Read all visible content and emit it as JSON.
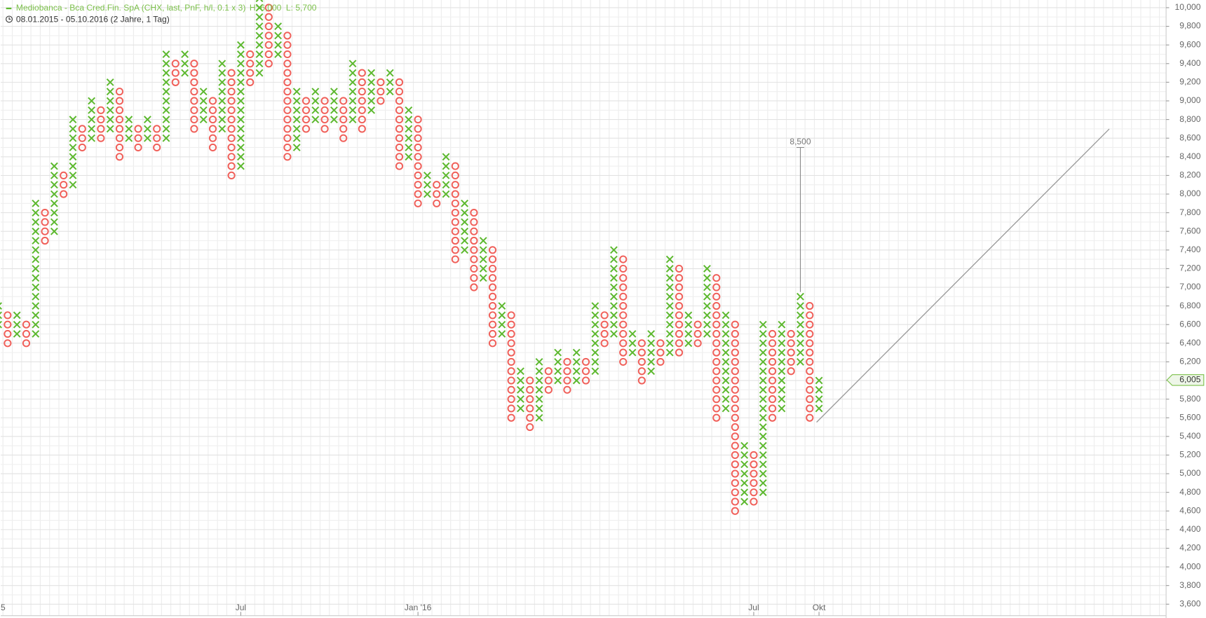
{
  "chart_data": {
    "type": "pnf",
    "title": "Mediobanca - Bca Cred.Fin. SpA (CHX, last, PnF, h/l, 0.1 x 3)",
    "high_label": "H: 6,000",
    "low_label": "L: 5,700",
    "period": "08.01.2015 - 05.10.2016 (2 Jahre, 1 Tag)",
    "box_size": 100,
    "x_color": "#5cb82e",
    "o_color": "#f0605a",
    "grid": true,
    "ylim": [
      3600,
      10000
    ],
    "yticks": [
      {
        "value": 3600,
        "label": "3,600"
      },
      {
        "value": 3800,
        "label": "3,800"
      },
      {
        "value": 4000,
        "label": "4,000"
      },
      {
        "value": 4200,
        "label": "4,200"
      },
      {
        "value": 4400,
        "label": "4,400"
      },
      {
        "value": 4600,
        "label": "4,600"
      },
      {
        "value": 4800,
        "label": "4,800"
      },
      {
        "value": 5000,
        "label": "5,000"
      },
      {
        "value": 5200,
        "label": "5,200"
      },
      {
        "value": 5400,
        "label": "5,400"
      },
      {
        "value": 5600,
        "label": "5,600"
      },
      {
        "value": 5800,
        "label": "5,800"
      },
      {
        "value": 6000,
        "label": "6,000"
      },
      {
        "value": 6200,
        "label": "6,200"
      },
      {
        "value": 6400,
        "label": "6,400"
      },
      {
        "value": 6600,
        "label": "6,600"
      },
      {
        "value": 6800,
        "label": "6,800"
      },
      {
        "value": 7000,
        "label": "7,000"
      },
      {
        "value": 7200,
        "label": "7,200"
      },
      {
        "value": 7400,
        "label": "7,400"
      },
      {
        "value": 7600,
        "label": "7,600"
      },
      {
        "value": 7800,
        "label": "7,800"
      },
      {
        "value": 8000,
        "label": "8,000"
      },
      {
        "value": 8200,
        "label": "8,200"
      },
      {
        "value": 8400,
        "label": "8,400"
      },
      {
        "value": 8600,
        "label": "8,600"
      },
      {
        "value": 8800,
        "label": "8,800"
      },
      {
        "value": 9000,
        "label": "9,000"
      },
      {
        "value": 9200,
        "label": "9,200"
      },
      {
        "value": 9400,
        "label": "9,400"
      },
      {
        "value": 9600,
        "label": "9,600"
      },
      {
        "value": 9800,
        "label": "9,800"
      },
      {
        "value": 10000,
        "label": "10,000"
      }
    ],
    "last_price": {
      "value": 6005,
      "label": "6,005"
    },
    "columns": [
      {
        "type": "X",
        "low": 6600,
        "high": 6800,
        "label": "5"
      },
      {
        "type": "O",
        "low": 6400,
        "high": 6700
      },
      {
        "type": "X",
        "low": 6500,
        "high": 6700
      },
      {
        "type": "O",
        "low": 6400,
        "high": 6600
      },
      {
        "type": "X",
        "low": 6500,
        "high": 7900
      },
      {
        "type": "O",
        "low": 7500,
        "high": 7800
      },
      {
        "type": "X",
        "low": 7600,
        "high": 8300
      },
      {
        "type": "O",
        "low": 8000,
        "high": 8200
      },
      {
        "type": "X",
        "low": 8100,
        "high": 8800
      },
      {
        "type": "O",
        "low": 8500,
        "high": 8700
      },
      {
        "type": "X",
        "low": 8600,
        "high": 9000
      },
      {
        "type": "O",
        "low": 8600,
        "high": 8900
      },
      {
        "type": "X",
        "low": 8700,
        "high": 9200
      },
      {
        "type": "O",
        "low": 8400,
        "high": 9100
      },
      {
        "type": "X",
        "low": 8600,
        "high": 8800
      },
      {
        "type": "O",
        "low": 8500,
        "high": 8700
      },
      {
        "type": "X",
        "low": 8600,
        "high": 8800
      },
      {
        "type": "O",
        "low": 8500,
        "high": 8700
      },
      {
        "type": "X",
        "low": 8600,
        "high": 9500
      },
      {
        "type": "O",
        "low": 9200,
        "high": 9400
      },
      {
        "type": "X",
        "low": 9300,
        "high": 9500
      },
      {
        "type": "O",
        "low": 8700,
        "high": 9400
      },
      {
        "type": "X",
        "low": 8800,
        "high": 9100
      },
      {
        "type": "O",
        "low": 8500,
        "high": 9000
      },
      {
        "type": "X",
        "low": 8700,
        "high": 9400
      },
      {
        "type": "O",
        "low": 8200,
        "high": 9300
      },
      {
        "type": "X",
        "low": 8300,
        "high": 9600,
        "label": "Jul"
      },
      {
        "type": "O",
        "low": 9200,
        "high": 9500
      },
      {
        "type": "X",
        "low": 9300,
        "high": 10100
      },
      {
        "type": "O",
        "low": 9400,
        "high": 10000
      },
      {
        "type": "X",
        "low": 9500,
        "high": 9800
      },
      {
        "type": "O",
        "low": 8400,
        "high": 9700
      },
      {
        "type": "X",
        "low": 8500,
        "high": 9100
      },
      {
        "type": "O",
        "low": 8700,
        "high": 9000
      },
      {
        "type": "X",
        "low": 8800,
        "high": 9100
      },
      {
        "type": "O",
        "low": 8700,
        "high": 9000
      },
      {
        "type": "X",
        "low": 8800,
        "high": 9100
      },
      {
        "type": "O",
        "low": 8600,
        "high": 9000
      },
      {
        "type": "X",
        "low": 8800,
        "high": 9400
      },
      {
        "type": "O",
        "low": 8700,
        "high": 9300
      },
      {
        "type": "X",
        "low": 8900,
        "high": 9300
      },
      {
        "type": "O",
        "low": 9000,
        "high": 9200
      },
      {
        "type": "X",
        "low": 9100,
        "high": 9300
      },
      {
        "type": "O",
        "low": 8300,
        "high": 9200
      },
      {
        "type": "X",
        "low": 8400,
        "high": 8900
      },
      {
        "type": "O",
        "low": 7900,
        "high": 8800,
        "label": "Jan '16"
      },
      {
        "type": "X",
        "low": 8000,
        "high": 8200
      },
      {
        "type": "O",
        "low": 7900,
        "high": 8100
      },
      {
        "type": "X",
        "low": 8000,
        "high": 8400
      },
      {
        "type": "O",
        "low": 7300,
        "high": 8300
      },
      {
        "type": "X",
        "low": 7400,
        "high": 7900
      },
      {
        "type": "O",
        "low": 7000,
        "high": 7800
      },
      {
        "type": "X",
        "low": 7100,
        "high": 7500
      },
      {
        "type": "O",
        "low": 6400,
        "high": 7400
      },
      {
        "type": "X",
        "low": 6500,
        "high": 6800
      },
      {
        "type": "O",
        "low": 5600,
        "high": 6700
      },
      {
        "type": "X",
        "low": 5700,
        "high": 6100
      },
      {
        "type": "O",
        "low": 5500,
        "high": 6000
      },
      {
        "type": "X",
        "low": 5600,
        "high": 6200
      },
      {
        "type": "O",
        "low": 5900,
        "high": 6100
      },
      {
        "type": "X",
        "low": 6000,
        "high": 6300
      },
      {
        "type": "O",
        "low": 5900,
        "high": 6200
      },
      {
        "type": "X",
        "low": 6000,
        "high": 6300
      },
      {
        "type": "O",
        "low": 6000,
        "high": 6200
      },
      {
        "type": "X",
        "low": 6100,
        "high": 6800
      },
      {
        "type": "O",
        "low": 6400,
        "high": 6700
      },
      {
        "type": "X",
        "low": 6500,
        "high": 7400
      },
      {
        "type": "O",
        "low": 6200,
        "high": 7300
      },
      {
        "type": "X",
        "low": 6300,
        "high": 6500
      },
      {
        "type": "O",
        "low": 6000,
        "high": 6400
      },
      {
        "type": "X",
        "low": 6100,
        "high": 6500
      },
      {
        "type": "O",
        "low": 6200,
        "high": 6400
      },
      {
        "type": "X",
        "low": 6300,
        "high": 7300
      },
      {
        "type": "O",
        "low": 6300,
        "high": 7200
      },
      {
        "type": "X",
        "low": 6400,
        "high": 6700
      },
      {
        "type": "O",
        "low": 6400,
        "high": 6600
      },
      {
        "type": "X",
        "low": 6500,
        "high": 7200
      },
      {
        "type": "O",
        "low": 5600,
        "high": 7100
      },
      {
        "type": "X",
        "low": 5700,
        "high": 6700
      },
      {
        "type": "O",
        "low": 4600,
        "high": 6600
      },
      {
        "type": "X",
        "low": 4700,
        "high": 5300
      },
      {
        "type": "O",
        "low": 4700,
        "high": 5200,
        "label": "Jul"
      },
      {
        "type": "X",
        "low": 4800,
        "high": 6600
      },
      {
        "type": "O",
        "low": 5600,
        "high": 6500
      },
      {
        "type": "X",
        "low": 5700,
        "high": 6600
      },
      {
        "type": "O",
        "low": 6100,
        "high": 6500
      },
      {
        "type": "X",
        "low": 6200,
        "high": 6900,
        "target": {
          "value": 8500,
          "label": "8,500"
        }
      },
      {
        "type": "O",
        "low": 5600,
        "high": 6800
      },
      {
        "type": "X",
        "low": 5700,
        "high": 6000,
        "label": "Okt"
      }
    ]
  }
}
